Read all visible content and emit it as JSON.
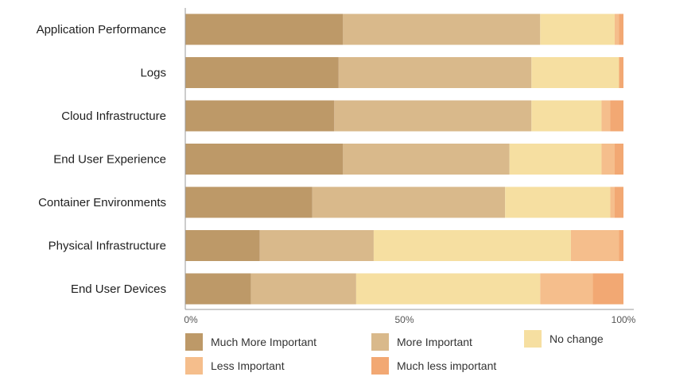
{
  "chart_data": {
    "type": "bar",
    "orientation": "horizontal",
    "stacked": true,
    "categories": [
      "Application Performance",
      "Logs",
      "Cloud Infrastructure",
      "End User Experience",
      "Container Environments",
      "Physical Infrastructure",
      "End User Devices"
    ],
    "series": [
      {
        "name": "Much More Important",
        "color": "#bd9968",
        "values": [
          36,
          35,
          34,
          36,
          29,
          17,
          15
        ]
      },
      {
        "name": "More Important",
        "color": "#d9b98b",
        "values": [
          45,
          44,
          45,
          38,
          44,
          26,
          24
        ]
      },
      {
        "name": "No change",
        "color": "#f6dfa1",
        "values": [
          17,
          20,
          16,
          21,
          24,
          45,
          42
        ]
      },
      {
        "name": "Less Important",
        "color": "#f5be8c",
        "values": [
          1,
          0,
          2,
          3,
          1,
          11,
          12
        ]
      },
      {
        "name": "Much less important",
        "color": "#f2a873",
        "values": [
          1,
          1,
          3,
          2,
          2,
          1,
          7
        ]
      }
    ],
    "xlim": [
      0,
      100
    ],
    "xticks": [
      "0%",
      "50%",
      "100%"
    ],
    "grid": false,
    "legend_position": "bottom"
  }
}
